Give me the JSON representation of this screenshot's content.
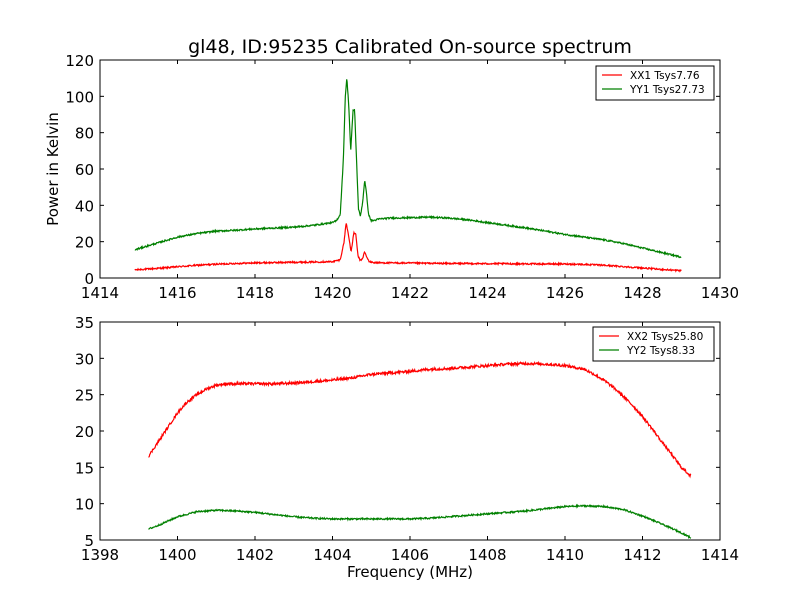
{
  "title": "gl48, ID:95235 Calibrated On-source spectrum",
  "chart_data": [
    {
      "type": "line",
      "ylabel": "Power in Kelvin",
      "xlabel": "",
      "xlim": [
        1414,
        1430
      ],
      "ylim": [
        0,
        120
      ],
      "xticks": [
        1414,
        1416,
        1418,
        1420,
        1422,
        1424,
        1426,
        1428,
        1430
      ],
      "yticks": [
        0,
        20,
        40,
        60,
        80,
        100,
        120
      ],
      "legend_position": "top-right",
      "series": [
        {
          "name": "XX1 Tsys7.76",
          "color": "#ff0000",
          "x": [
            1414.9,
            1415.5,
            1416.0,
            1416.5,
            1417.0,
            1417.5,
            1418.0,
            1418.5,
            1419.0,
            1419.5,
            1420.0,
            1420.2,
            1420.3,
            1420.35,
            1420.42,
            1420.48,
            1420.55,
            1420.6,
            1420.66,
            1420.72,
            1420.78,
            1420.83,
            1420.88,
            1420.95,
            1421.05,
            1421.2,
            1421.5,
            1422.0,
            1423.0,
            1424.0,
            1425.0,
            1426.0,
            1426.5,
            1427.0,
            1427.5,
            1428.0,
            1428.5,
            1429.0
          ],
          "y": [
            4.5,
            5.3,
            6.2,
            7.0,
            7.6,
            8.0,
            8.3,
            8.5,
            8.7,
            8.8,
            9.0,
            10.0,
            20.0,
            30.5,
            23.0,
            14.0,
            25.0,
            24.0,
            12.0,
            9.5,
            11.0,
            14.5,
            11.5,
            9.0,
            8.5,
            8.4,
            8.3,
            8.2,
            8.0,
            7.9,
            7.8,
            7.7,
            7.5,
            7.0,
            6.3,
            5.5,
            4.7,
            4.0
          ]
        },
        {
          "name": "YY1 Tsys27.73",
          "color": "#008000",
          "x": [
            1414.9,
            1415.2,
            1415.6,
            1416.0,
            1416.5,
            1417.0,
            1417.5,
            1418.0,
            1418.5,
            1419.0,
            1419.5,
            1420.0,
            1420.1,
            1420.2,
            1420.28,
            1420.33,
            1420.37,
            1420.42,
            1420.47,
            1420.53,
            1420.57,
            1420.62,
            1420.67,
            1420.72,
            1420.78,
            1420.83,
            1420.88,
            1420.93,
            1421.0,
            1421.1,
            1421.2,
            1421.5,
            1422.0,
            1422.5,
            1423.0,
            1423.5,
            1424.0,
            1424.5,
            1425.0,
            1425.5,
            1426.0,
            1426.5,
            1427.0,
            1427.5,
            1428.0,
            1428.5,
            1429.0
          ],
          "y": [
            15.5,
            17.5,
            20.0,
            22.5,
            24.5,
            25.8,
            26.3,
            27.0,
            27.5,
            28.0,
            29.0,
            30.5,
            31.5,
            35.0,
            65.0,
            100.0,
            110.0,
            95.0,
            70.0,
            92.0,
            93.0,
            65.0,
            38.0,
            34.0,
            42.0,
            54.0,
            46.0,
            35.0,
            31.5,
            31.8,
            32.5,
            33.0,
            33.2,
            33.5,
            33.0,
            32.0,
            30.5,
            29.0,
            27.5,
            25.8,
            24.0,
            22.5,
            21.0,
            19.0,
            16.5,
            14.0,
            11.5
          ]
        }
      ]
    },
    {
      "type": "line",
      "ylabel": "",
      "xlabel": "Frequency (MHz)",
      "xlim": [
        1398,
        1414
      ],
      "ylim": [
        5,
        35
      ],
      "xticks": [
        1398,
        1400,
        1402,
        1404,
        1406,
        1408,
        1410,
        1412,
        1414
      ],
      "yticks": [
        5,
        10,
        15,
        20,
        25,
        30,
        35
      ],
      "legend_position": "top-right",
      "series": [
        {
          "name": "XX2 Tsys25.80",
          "color": "#ff0000",
          "x": [
            1399.25,
            1399.5,
            1399.75,
            1400.0,
            1400.25,
            1400.5,
            1400.75,
            1401.0,
            1401.25,
            1401.5,
            1402.0,
            1402.5,
            1403.0,
            1403.5,
            1404.0,
            1404.5,
            1405.0,
            1405.5,
            1406.0,
            1406.5,
            1407.0,
            1407.5,
            1408.0,
            1408.5,
            1409.0,
            1409.5,
            1410.0,
            1410.5,
            1410.75,
            1411.0,
            1411.25,
            1411.5,
            1411.75,
            1412.0,
            1412.25,
            1412.5,
            1412.75,
            1413.0,
            1413.25
          ],
          "y": [
            16.5,
            18.5,
            20.5,
            22.5,
            24.0,
            25.0,
            25.8,
            26.3,
            26.5,
            26.5,
            26.5,
            26.5,
            26.6,
            26.8,
            27.0,
            27.3,
            27.8,
            28.0,
            28.2,
            28.5,
            28.6,
            28.8,
            29.0,
            29.2,
            29.3,
            29.2,
            29.0,
            28.5,
            27.8,
            27.0,
            26.0,
            24.8,
            23.5,
            22.0,
            20.3,
            18.5,
            16.8,
            15.0,
            13.8
          ]
        },
        {
          "name": "YY2 Tsys8.33",
          "color": "#008000",
          "x": [
            1399.25,
            1399.5,
            1400.0,
            1400.5,
            1401.0,
            1401.5,
            1402.0,
            1402.5,
            1403.0,
            1403.5,
            1404.0,
            1404.5,
            1405.0,
            1405.5,
            1406.0,
            1406.5,
            1407.0,
            1407.5,
            1408.0,
            1408.5,
            1409.0,
            1409.5,
            1410.0,
            1410.5,
            1411.0,
            1411.5,
            1412.0,
            1412.5,
            1413.0,
            1413.25
          ],
          "y": [
            6.5,
            7.0,
            8.2,
            8.9,
            9.1,
            9.0,
            8.8,
            8.5,
            8.2,
            8.0,
            7.9,
            7.9,
            7.9,
            7.9,
            7.9,
            8.0,
            8.2,
            8.4,
            8.6,
            8.8,
            9.0,
            9.3,
            9.6,
            9.7,
            9.6,
            9.2,
            8.3,
            7.2,
            6.0,
            5.3
          ]
        }
      ]
    }
  ]
}
